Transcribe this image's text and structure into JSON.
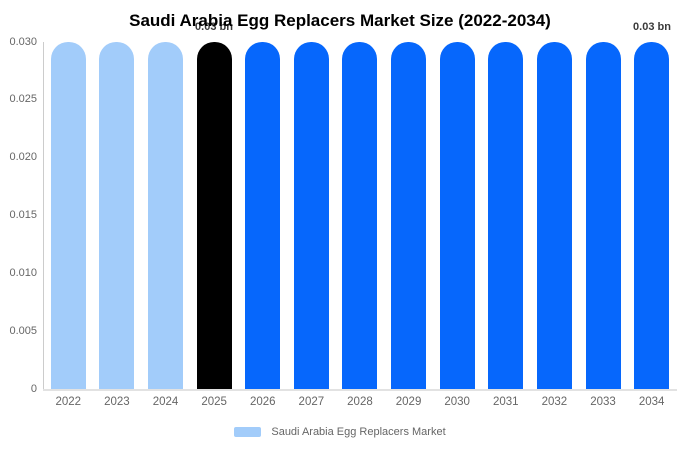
{
  "chart_data": {
    "type": "bar",
    "title": "Saudi Arabia Egg Replacers Market Size (2022-2034)",
    "categories": [
      "2022",
      "2023",
      "2024",
      "2025",
      "2026",
      "2027",
      "2028",
      "2029",
      "2030",
      "2031",
      "2032",
      "2033",
      "2034"
    ],
    "values": [
      0.03,
      0.03,
      0.03,
      0.03,
      0.03,
      0.03,
      0.03,
      0.03,
      0.03,
      0.03,
      0.03,
      0.03,
      0.03
    ],
    "unit": "bn",
    "bar_colors": [
      "#A2CCFA",
      "#A2CCFA",
      "#A2CCFA",
      "#000000",
      "#0667FC",
      "#0667FC",
      "#0667FC",
      "#0667FC",
      "#0667FC",
      "#0667FC",
      "#0667FC",
      "#0667FC",
      "#0667FC"
    ],
    "color_roles": {
      "historical": "#A2CCFA",
      "base_year": "#000000",
      "forecast": "#0667FC"
    },
    "xlabel": "",
    "ylabel": "",
    "ylim": [
      0,
      0.03
    ],
    "y_tick_values": [
      0,
      0.005,
      0.01,
      0.015,
      0.02,
      0.025,
      0.03
    ],
    "y_tick_labels": [
      "0",
      "0.005",
      "0.010",
      "0.015",
      "0.020",
      "0.025",
      "0.030"
    ],
    "grid": false,
    "annotations": [
      {
        "text": "0.03 bn",
        "category": "2025"
      },
      {
        "text": "0.03 bn",
        "category": "2034"
      }
    ],
    "legend": {
      "position": "bottom",
      "items": [
        {
          "label": "Saudi Arabia Egg Replacers Market",
          "color": "#A2CCFA"
        }
      ]
    }
  }
}
